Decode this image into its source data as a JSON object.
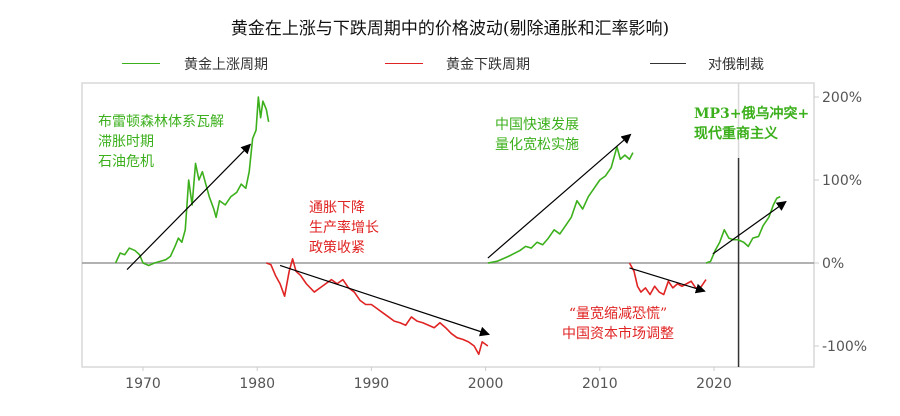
{
  "chart_data": {
    "type": "line",
    "title": "黄金在上涨与下跌周期中的价格波动(剔除通胀和汇率影响)",
    "xlabel": "",
    "ylabel": "",
    "xlim": [
      1965,
      2028.5
    ],
    "ylim": [
      -125,
      215
    ],
    "x_ticks": [
      1970,
      1980,
      1990,
      2000,
      2010,
      2020
    ],
    "y_ticks": [
      {
        "v": 200,
        "label": "200%"
      },
      {
        "v": 100,
        "label": "100%"
      },
      {
        "v": 0,
        "label": "0%"
      },
      {
        "v": -100,
        "label": "-100%"
      }
    ],
    "legend": [
      {
        "label": "黄金上涨周期",
        "color": "#3cb01c"
      },
      {
        "label": "黄金下跌周期",
        "color": "#e02424"
      },
      {
        "label": "对俄制裁",
        "color": "#333333"
      }
    ],
    "series": [
      {
        "name": "黄金上涨周期",
        "color": "#3cb01c",
        "points": [
          [
            1967.6,
            0
          ],
          [
            1968,
            12
          ],
          [
            1968.4,
            10
          ],
          [
            1968.8,
            18
          ],
          [
            1969.3,
            15
          ],
          [
            1969.7,
            10
          ],
          [
            1970,
            0
          ],
          [
            1970.5,
            -3
          ],
          [
            1971,
            0
          ],
          [
            1971.5,
            2
          ],
          [
            1972,
            4
          ],
          [
            1972.4,
            8
          ],
          [
            1972.8,
            20
          ],
          [
            1973.1,
            30
          ],
          [
            1973.4,
            25
          ],
          [
            1973.7,
            40
          ],
          [
            1974,
            100
          ],
          [
            1974.3,
            70
          ],
          [
            1974.6,
            120
          ],
          [
            1974.9,
            100
          ],
          [
            1975.2,
            110
          ],
          [
            1975.5,
            95
          ],
          [
            1975.8,
            80
          ],
          [
            1976.2,
            65
          ],
          [
            1976.4,
            55
          ],
          [
            1976.7,
            75
          ],
          [
            1977.2,
            70
          ],
          [
            1977.7,
            80
          ],
          [
            1978.2,
            85
          ],
          [
            1978.6,
            95
          ],
          [
            1979,
            90
          ],
          [
            1979.3,
            110
          ],
          [
            1979.6,
            150
          ],
          [
            1979.9,
            160
          ],
          [
            1980.1,
            200
          ],
          [
            1980.3,
            175
          ],
          [
            1980.5,
            195
          ],
          [
            1980.8,
            185
          ],
          [
            1981,
            170
          ]
        ]
      },
      {
        "name": "黄金下跌周期",
        "color": "#e02424",
        "points": [
          [
            1980.8,
            0
          ],
          [
            1981.2,
            -2
          ],
          [
            1981.6,
            -15
          ],
          [
            1982,
            -25
          ],
          [
            1982.4,
            -40
          ],
          [
            1982.8,
            -10
          ],
          [
            1983.1,
            5
          ],
          [
            1983.4,
            -10
          ],
          [
            1983.8,
            -15
          ],
          [
            1984.3,
            -25
          ],
          [
            1985,
            -35
          ],
          [
            1985.5,
            -30
          ],
          [
            1986,
            -25
          ],
          [
            1986.5,
            -20
          ],
          [
            1987,
            -25
          ],
          [
            1987.5,
            -20
          ],
          [
            1988,
            -30
          ],
          [
            1988.5,
            -35
          ],
          [
            1989,
            -45
          ],
          [
            1989.5,
            -50
          ],
          [
            1990,
            -50
          ],
          [
            1990.5,
            -55
          ],
          [
            1991,
            -60
          ],
          [
            1991.5,
            -65
          ],
          [
            1992,
            -70
          ],
          [
            1992.5,
            -72
          ],
          [
            1993,
            -75
          ],
          [
            1993.5,
            -65
          ],
          [
            1994,
            -70
          ],
          [
            1994.5,
            -72
          ],
          [
            1995,
            -75
          ],
          [
            1995.5,
            -78
          ],
          [
            1996,
            -72
          ],
          [
            1996.5,
            -78
          ],
          [
            1997,
            -85
          ],
          [
            1997.5,
            -90
          ],
          [
            1998,
            -92
          ],
          [
            1998.5,
            -95
          ],
          [
            1999,
            -100
          ],
          [
            1999.4,
            -110
          ],
          [
            1999.7,
            -95
          ],
          [
            2000.2,
            -100
          ]
        ]
      },
      {
        "name": "黄金上涨周期",
        "color": "#3cb01c",
        "points": [
          [
            2000.2,
            0
          ],
          [
            2001,
            2
          ],
          [
            2002,
            8
          ],
          [
            2003,
            15
          ],
          [
            2003.5,
            20
          ],
          [
            2004,
            18
          ],
          [
            2004.5,
            25
          ],
          [
            2005,
            22
          ],
          [
            2005.5,
            30
          ],
          [
            2006,
            40
          ],
          [
            2006.5,
            35
          ],
          [
            2007,
            45
          ],
          [
            2007.5,
            55
          ],
          [
            2008,
            75
          ],
          [
            2008.5,
            65
          ],
          [
            2009,
            80
          ],
          [
            2009.5,
            90
          ],
          [
            2010,
            100
          ],
          [
            2010.5,
            105
          ],
          [
            2011,
            115
          ],
          [
            2011.5,
            140
          ],
          [
            2011.8,
            125
          ],
          [
            2012.2,
            130
          ],
          [
            2012.6,
            125
          ],
          [
            2012.9,
            133
          ]
        ]
      },
      {
        "name": "黄金下跌周期",
        "color": "#e02424",
        "points": [
          [
            2012.6,
            0
          ],
          [
            2013,
            -10
          ],
          [
            2013.3,
            -28
          ],
          [
            2013.6,
            -35
          ],
          [
            2014,
            -30
          ],
          [
            2014.4,
            -38
          ],
          [
            2014.8,
            -28
          ],
          [
            2015.2,
            -35
          ],
          [
            2015.6,
            -38
          ],
          [
            2016,
            -22
          ],
          [
            2016.4,
            -30
          ],
          [
            2016.8,
            -25
          ],
          [
            2017.2,
            -28
          ],
          [
            2017.6,
            -25
          ],
          [
            2018,
            -22
          ],
          [
            2018.4,
            -30
          ],
          [
            2018.8,
            -30
          ],
          [
            2019.3,
            -20
          ]
        ]
      },
      {
        "name": "黄金上涨周期",
        "color": "#3cb01c",
        "points": [
          [
            2019.3,
            0
          ],
          [
            2019.7,
            2
          ],
          [
            2020.1,
            15
          ],
          [
            2020.5,
            25
          ],
          [
            2020.9,
            40
          ],
          [
            2021.3,
            30
          ],
          [
            2021.7,
            28
          ],
          [
            2022.1,
            28
          ],
          [
            2022.6,
            25
          ],
          [
            2023,
            20
          ],
          [
            2023.4,
            30
          ],
          [
            2023.9,
            32
          ],
          [
            2024.3,
            45
          ],
          [
            2024.8,
            55
          ],
          [
            2025.2,
            70
          ],
          [
            2025.5,
            78
          ],
          [
            2025.8,
            80
          ]
        ]
      }
    ],
    "arrows": [
      [
        [
          1968.6,
          -8
        ],
        [
          1979.4,
          143
        ]
      ],
      [
        [
          1982,
          -3
        ],
        [
          2000.3,
          -86
        ]
      ],
      [
        [
          2000.2,
          6
        ],
        [
          2012.7,
          155
        ]
      ],
      [
        [
          2012.6,
          -6
        ],
        [
          2019.2,
          -34
        ]
      ],
      [
        [
          2019.9,
          11
        ],
        [
          2026.3,
          74
        ]
      ]
    ],
    "vline": {
      "x": 2022.15,
      "label": "对俄制裁"
    },
    "annotations": [
      {
        "lines": [
          "布雷顿森林体系瓦解",
          "滞胀时期",
          "石油危机"
        ],
        "color": "#3cb01c"
      },
      {
        "lines": [
          "通胀下降",
          "生产率增长",
          "政策收紧"
        ],
        "color": "#e02424"
      },
      {
        "lines": [
          "中国快速发展",
          "量化宽松实施"
        ],
        "color": "#3cb01c"
      },
      {
        "lines": [
          "MP3+俄乌冲突+",
          "现代重商主义"
        ],
        "color": "#3cb01c"
      },
      {
        "lines": [
          "“量宽缩减恐慌”",
          "中国资本市场调整"
        ],
        "color": "#e02424"
      }
    ]
  }
}
